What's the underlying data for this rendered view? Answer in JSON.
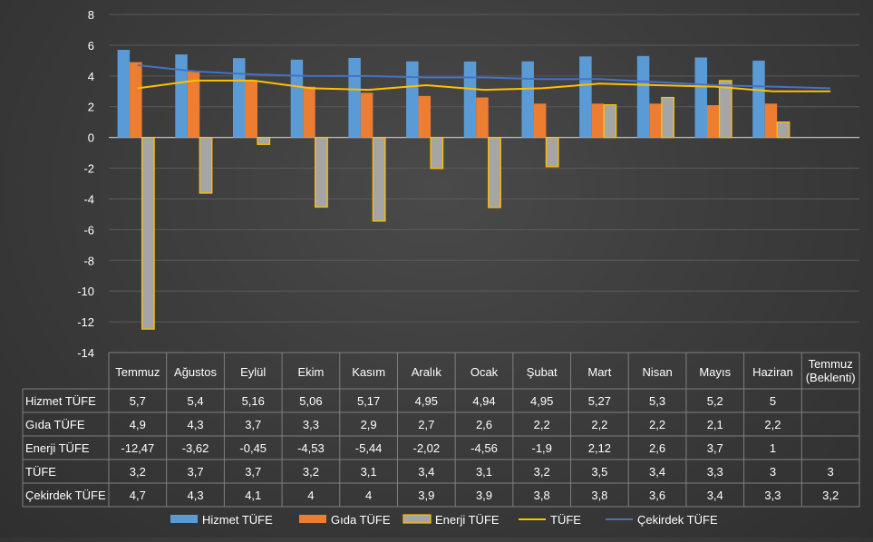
{
  "chart_data": {
    "type": "bar",
    "categories": [
      "Temmuz",
      "Ağustos",
      "Eylül",
      "Ekim",
      "Kasım",
      "Aralık",
      "Ocak",
      "Şubat",
      "Mart",
      "Nisan",
      "Mayıs",
      "Haziran",
      "Temmuz (Beklenti)"
    ],
    "category_lines": [
      [
        "Temmuz"
      ],
      [
        "Ağustos"
      ],
      [
        "Eylül"
      ],
      [
        "Ekim"
      ],
      [
        "Kasım"
      ],
      [
        "Aralık"
      ],
      [
        "Ocak"
      ],
      [
        "Şubat"
      ],
      [
        "Mart"
      ],
      [
        "Nisan"
      ],
      [
        "Mayıs"
      ],
      [
        "Haziran"
      ],
      [
        "Temmuz",
        "(Beklenti)"
      ]
    ],
    "ylim": [
      -14,
      8
    ],
    "yticks": [
      -14,
      -12,
      -10,
      -8,
      -6,
      -4,
      -2,
      0,
      2,
      4,
      6,
      8
    ],
    "grid": true,
    "legend_position": "bottom",
    "data_table": true,
    "series": [
      {
        "name": "Hizmet TÜFE",
        "kind": "bar",
        "color": "#5b9bd5",
        "values": [
          5.7,
          5.4,
          5.16,
          5.06,
          5.17,
          4.95,
          4.94,
          4.95,
          5.27,
          5.3,
          5.2,
          5,
          null
        ],
        "labels": [
          "5,7",
          "5,4",
          "5,16",
          "5,06",
          "5,17",
          "4,95",
          "4,94",
          "4,95",
          "5,27",
          "5,3",
          "5,2",
          "5",
          ""
        ]
      },
      {
        "name": "Gıda TÜFE",
        "kind": "bar",
        "color": "#ed7d31",
        "values": [
          4.9,
          4.3,
          3.7,
          3.3,
          2.9,
          2.7,
          2.6,
          2.2,
          2.2,
          2.2,
          2.1,
          2.2,
          null
        ],
        "labels": [
          "4,9",
          "4,3",
          "3,7",
          "3,3",
          "2,9",
          "2,7",
          "2,6",
          "2,2",
          "2,2",
          "2,2",
          "2,1",
          "2,2",
          ""
        ]
      },
      {
        "name": "Enerji TÜFE",
        "kind": "bar",
        "color": "#a5a5a5",
        "border": "#ffc000",
        "values": [
          -12.47,
          -3.62,
          -0.45,
          -4.53,
          -5.44,
          -2.02,
          -4.56,
          -1.9,
          2.12,
          2.6,
          3.7,
          1,
          null
        ],
        "labels": [
          "-12,47",
          "-3,62",
          "-0,45",
          "-4,53",
          "-5,44",
          "-2,02",
          "-4,56",
          "-1,9",
          "2,12",
          "2,6",
          "3,7",
          "1",
          ""
        ]
      },
      {
        "name": "TÜFE",
        "kind": "line",
        "color": "#ffc000",
        "values": [
          3.2,
          3.7,
          3.7,
          3.2,
          3.1,
          3.4,
          3.1,
          3.2,
          3.5,
          3.4,
          3.3,
          3,
          3
        ],
        "labels": [
          "3,2",
          "3,7",
          "3,7",
          "3,2",
          "3,1",
          "3,4",
          "3,1",
          "3,2",
          "3,5",
          "3,4",
          "3,3",
          "3",
          "3"
        ]
      },
      {
        "name": "Çekirdek TÜFE",
        "kind": "line",
        "color": "#4472c4",
        "values": [
          4.7,
          4.3,
          4.1,
          4,
          4,
          3.9,
          3.9,
          3.8,
          3.8,
          3.6,
          3.4,
          3.3,
          3.2
        ],
        "labels": [
          "4,7",
          "4,3",
          "4,1",
          "4",
          "4",
          "3,9",
          "3,9",
          "3,8",
          "3,8",
          "3,6",
          "3,4",
          "3,3",
          "3,2"
        ]
      }
    ]
  }
}
